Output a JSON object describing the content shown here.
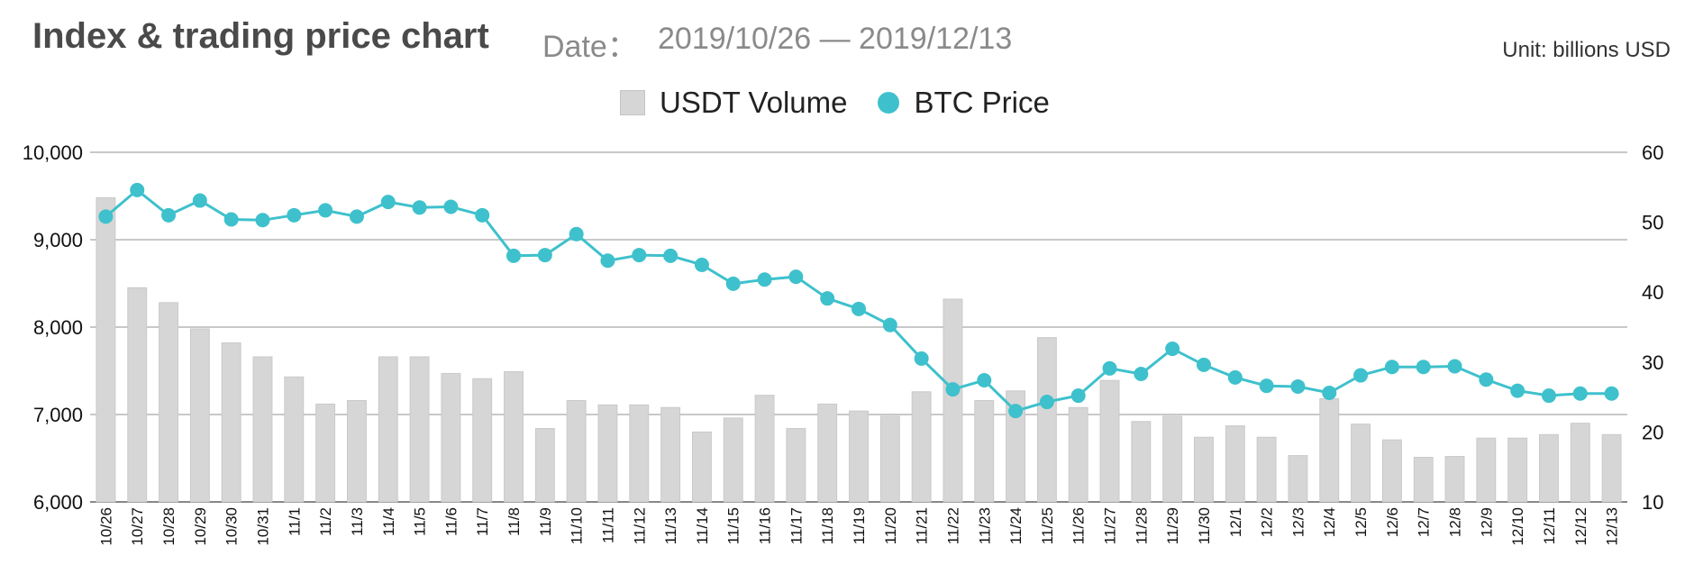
{
  "header": {
    "title": "Index & trading price chart",
    "date_label": "Date：",
    "date_range": "2019/10/26 — 2019/12/13",
    "unit": "Unit: billions USD"
  },
  "legend": [
    {
      "label": "USDT Volume",
      "marker": "square",
      "color": "#d6d6d6"
    },
    {
      "label": "BTC Price",
      "marker": "circle",
      "color": "#3ec1cc"
    }
  ],
  "chart_data": {
    "type": "bar+line",
    "categories": [
      "10/26",
      "10/27",
      "10/28",
      "10/29",
      "10/30",
      "10/31",
      "11/1",
      "11/2",
      "11/3",
      "11/4",
      "11/5",
      "11/6",
      "11/7",
      "11/8",
      "11/9",
      "11/10",
      "11/11",
      "11/12",
      "11/13",
      "11/14",
      "11/15",
      "11/16",
      "11/17",
      "11/18",
      "11/19",
      "11/20",
      "11/21",
      "11/22",
      "11/23",
      "11/24",
      "11/25",
      "11/26",
      "11/27",
      "11/28",
      "11/29",
      "11/30",
      "12/1",
      "12/2",
      "12/3",
      "12/4",
      "12/5",
      "12/6",
      "12/7",
      "12/8",
      "12/9",
      "12/10",
      "12/11",
      "12/12",
      "12/13"
    ],
    "series": [
      {
        "name": "USDT Volume",
        "kind": "bar",
        "axis": "left",
        "color": "#d6d6d6",
        "values": [
          9480,
          8450,
          8280,
          7980,
          7820,
          7660,
          7430,
          7120,
          7160,
          7660,
          7660,
          7470,
          7410,
          7490,
          6840,
          7160,
          7110,
          7110,
          7080,
          6800,
          6960,
          7220,
          6840,
          7120,
          7040,
          6980,
          7260,
          8320,
          7160,
          7270,
          7880,
          7080,
          7390,
          6920,
          6980,
          6740,
          6870,
          6740,
          6530,
          7180,
          6890,
          6710,
          6510,
          6520,
          6730,
          6730,
          6770,
          6900,
          6770
        ]
      },
      {
        "name": "BTC Price",
        "kind": "line",
        "axis": "right",
        "color": "#3ec1cc",
        "values": [
          50.8,
          54.6,
          51,
          53.1,
          50.4,
          50.3,
          51,
          51.7,
          50.8,
          52.9,
          52.1,
          52.2,
          51,
          45.2,
          45.3,
          48.3,
          44.5,
          45.3,
          45.2,
          43.9,
          41.2,
          41.8,
          42.2,
          39.1,
          37.6,
          35.3,
          30.5,
          26.1,
          27.4,
          23,
          24.3,
          25.2,
          29.1,
          28.3,
          31.9,
          29.6,
          27.8,
          26.6,
          26.5,
          25.6,
          28.1,
          29.3,
          29.3,
          29.4,
          27.5,
          25.9,
          25.2,
          25.5,
          25.5
        ]
      }
    ],
    "y_left": {
      "min": 6000,
      "max": 10000,
      "ticks": [
        "6,000",
        "7,000",
        "8,000",
        "9,000",
        "10,000"
      ]
    },
    "y_right": {
      "min": 10,
      "max": 60,
      "ticks": [
        "10",
        "20",
        "30",
        "40",
        "50",
        "60"
      ]
    },
    "grid": true,
    "legend_position": "top-center"
  }
}
